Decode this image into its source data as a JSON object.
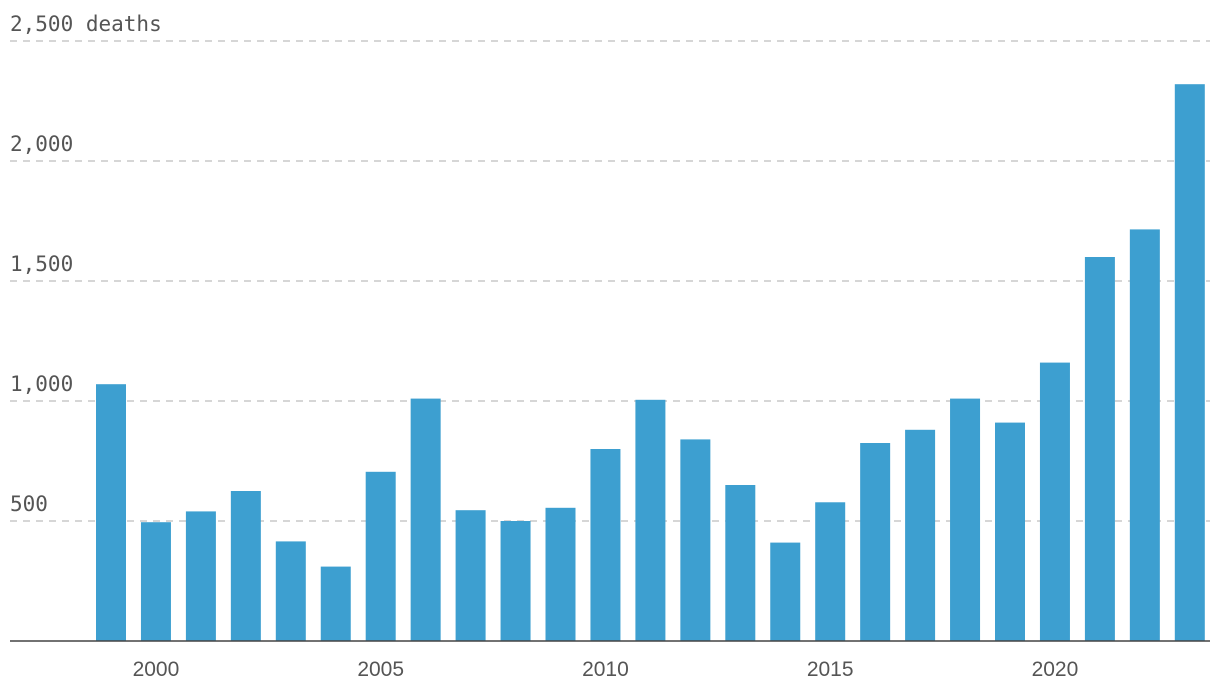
{
  "chart_data": {
    "type": "bar",
    "bar_color": "#3d9fd0",
    "x": [
      1999,
      2000,
      2001,
      2002,
      2003,
      2004,
      2005,
      2006,
      2007,
      2008,
      2009,
      2010,
      2011,
      2012,
      2013,
      2014,
      2015,
      2016,
      2017,
      2018,
      2019,
      2020,
      2021,
      2022,
      2023
    ],
    "values": [
      1070,
      495,
      540,
      625,
      415,
      310,
      705,
      1010,
      545,
      500,
      555,
      800,
      1005,
      840,
      650,
      410,
      578,
      825,
      880,
      1010,
      910,
      1160,
      1600,
      1715,
      2320
    ],
    "ylim": [
      0,
      2500
    ],
    "y_ticks": [
      {
        "value": 500,
        "label": "500"
      },
      {
        "value": 1000,
        "label": "1,000"
      },
      {
        "value": 1500,
        "label": "1,500"
      },
      {
        "value": 2000,
        "label": "2,000"
      },
      {
        "value": 2500,
        "label": "2,500 deaths"
      }
    ],
    "x_ticks": [
      {
        "value": 2000,
        "label": "2000"
      },
      {
        "value": 2005,
        "label": "2005"
      },
      {
        "value": 2010,
        "label": "2010"
      },
      {
        "value": 2015,
        "label": "2015"
      },
      {
        "value": 2020,
        "label": "2020"
      }
    ],
    "grid": true,
    "legend": "none"
  }
}
